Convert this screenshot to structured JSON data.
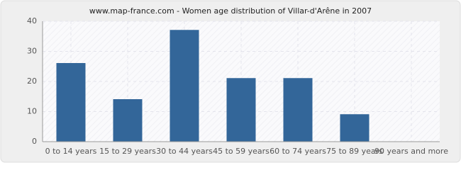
{
  "chart_data": {
    "type": "bar",
    "title": "www.map-france.com - Women age distribution of Villar-d'Arêne in 2007",
    "categories": [
      "0 to 14 years",
      "15 to 29 years",
      "30 to 44 years",
      "45 to 59 years",
      "60 to 74 years",
      "75 to 89 years",
      "90 years and more"
    ],
    "values": [
      26,
      14,
      37,
      21,
      21,
      9,
      0
    ],
    "color": "#336699",
    "ylim": [
      0,
      40
    ],
    "yticks": [
      0,
      10,
      20,
      30,
      40
    ],
    "grid": true
  }
}
